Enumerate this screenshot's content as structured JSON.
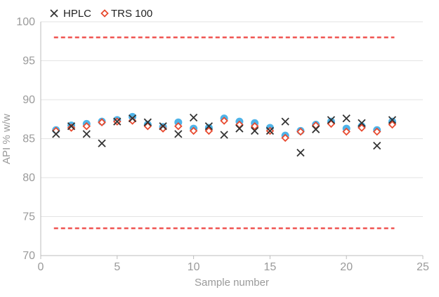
{
  "chart_data": {
    "type": "scatter",
    "title": "",
    "xlabel": "Sample number",
    "ylabel": "API % w/w",
    "xlim": [
      0,
      25
    ],
    "ylim": [
      70,
      100
    ],
    "x_ticks": [
      0,
      5,
      10,
      15,
      20,
      25
    ],
    "y_ticks": [
      70,
      75,
      80,
      85,
      90,
      95,
      100
    ],
    "grid": "horizontal",
    "legend": {
      "placement": "top-left",
      "entries": [
        "HPLC",
        "TRS 100"
      ]
    },
    "limits": [
      {
        "y": 98.0,
        "x_range": [
          1,
          23
        ],
        "style": "dashed",
        "color": "#ef5350"
      },
      {
        "y": 73.5,
        "x_range": [
          1,
          23
        ],
        "style": "dashed",
        "color": "#ef5350"
      }
    ],
    "series": [
      {
        "name": "HPLC",
        "marker": "x",
        "color": "#333333",
        "x": [
          1,
          2,
          3,
          4,
          5,
          6,
          7,
          8,
          9,
          10,
          11,
          12,
          13,
          14,
          15,
          16,
          17,
          18,
          19,
          20,
          21,
          22,
          23
        ],
        "y": [
          85.6,
          86.6,
          85.6,
          84.4,
          87.2,
          87.6,
          87.1,
          86.6,
          85.6,
          87.7,
          86.6,
          85.5,
          86.3,
          86.0,
          86.0,
          87.2,
          83.2,
          86.2,
          87.4,
          87.6,
          87.0,
          84.1,
          87.4
        ]
      },
      {
        "name": "",
        "marker": "circle",
        "color": "#4fb3e8",
        "x": [
          1,
          2,
          3,
          4,
          5,
          6,
          7,
          8,
          9,
          10,
          11,
          12,
          13,
          14,
          15,
          16,
          17,
          18,
          19,
          20,
          21,
          22,
          23
        ],
        "y": [
          86.1,
          86.7,
          86.9,
          87.2,
          87.4,
          87.8,
          86.8,
          86.5,
          87.1,
          86.3,
          86.4,
          87.6,
          87.2,
          87.0,
          86.4,
          85.4,
          86.0,
          86.8,
          87.2,
          86.3,
          86.6,
          86.1,
          87.2
        ]
      },
      {
        "name": "TRS 100",
        "marker": "diamond",
        "color": "#e84a2f",
        "x": [
          1,
          2,
          3,
          4,
          5,
          6,
          7,
          8,
          9,
          10,
          11,
          12,
          13,
          14,
          15,
          16,
          17,
          18,
          19,
          20,
          21,
          22,
          23
        ],
        "y": [
          86.0,
          86.4,
          86.6,
          87.1,
          87.2,
          87.3,
          86.6,
          86.3,
          86.6,
          86.0,
          86.0,
          87.3,
          86.8,
          86.6,
          86.0,
          85.1,
          85.9,
          86.7,
          86.9,
          85.9,
          86.4,
          85.9,
          86.8
        ]
      }
    ]
  }
}
